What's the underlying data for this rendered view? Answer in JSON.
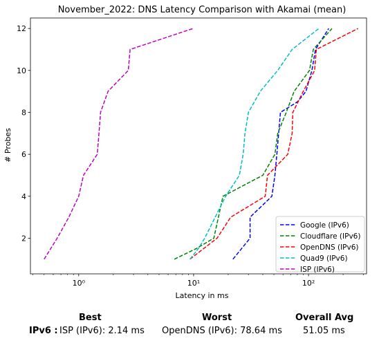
{
  "chart_data": {
    "type": "line",
    "title": "November_2022: DNS Latency Comparison with Akamai (mean)",
    "xlabel": "Latency in ms",
    "ylabel": "# Probes",
    "xscale": "log",
    "xlim": [
      0.38,
      320
    ],
    "ylim": [
      0.3,
      12.5
    ],
    "xticks": [
      {
        "value": 1,
        "label": "10⁰"
      },
      {
        "value": 10,
        "label": "10¹"
      },
      {
        "value": 100,
        "label": "10²"
      }
    ],
    "yticks": [
      2,
      4,
      6,
      8,
      10,
      12
    ],
    "grid": false,
    "legend_position": "lower-right",
    "line_style": "dashed",
    "series": [
      {
        "name": "Google (IPv6)",
        "color": "#0000ff",
        "points": [
          [
            22,
            1
          ],
          [
            31,
            2
          ],
          [
            31,
            2.5
          ],
          [
            31,
            3
          ],
          [
            48,
            4
          ],
          [
            51,
            5
          ],
          [
            53,
            6
          ],
          [
            55,
            7
          ],
          [
            57,
            8
          ],
          [
            80,
            8.5
          ],
          [
            95,
            9
          ],
          [
            107,
            10
          ],
          [
            115,
            11
          ],
          [
            150,
            12
          ]
        ]
      },
      {
        "name": "Cloudflare (IPv6)",
        "color": "#008000",
        "points": [
          [
            6.8,
            1
          ],
          [
            10.5,
            1.5
          ],
          [
            15,
            2
          ],
          [
            18,
            4
          ],
          [
            40,
            5
          ],
          [
            51,
            6
          ],
          [
            54,
            7
          ],
          [
            64,
            8
          ],
          [
            75,
            9
          ],
          [
            102,
            10
          ],
          [
            110,
            11
          ],
          [
            160,
            12
          ]
        ]
      },
      {
        "name": "OpenDNS (IPv6)",
        "color": "#ff0000",
        "points": [
          [
            9.3,
            1
          ],
          [
            16,
            2
          ],
          [
            21,
            3
          ],
          [
            42,
            4
          ],
          [
            44,
            5
          ],
          [
            66,
            6
          ],
          [
            72,
            7
          ],
          [
            73,
            8
          ],
          [
            90,
            9
          ],
          [
            113,
            10
          ],
          [
            117,
            11
          ],
          [
            270,
            12
          ]
        ]
      },
      {
        "name": "Quad9 (IPv6)",
        "color": "#00bfbf",
        "points": [
          [
            9.3,
            1
          ],
          [
            11,
            1.5
          ],
          [
            12.5,
            2
          ],
          [
            19,
            4
          ],
          [
            25,
            5
          ],
          [
            27,
            6
          ],
          [
            28,
            7
          ],
          [
            30,
            8
          ],
          [
            38,
            9
          ],
          [
            54,
            10
          ],
          [
            72,
            11
          ],
          [
            123,
            12
          ]
        ]
      },
      {
        "name": "ISP (IPv6)",
        "color": "#bf00bf",
        "points": [
          [
            0.5,
            1
          ],
          [
            0.65,
            2
          ],
          [
            0.82,
            3
          ],
          [
            1,
            4
          ],
          [
            1.1,
            5
          ],
          [
            1.45,
            6
          ],
          [
            1.5,
            7
          ],
          [
            1.55,
            8
          ],
          [
            1.8,
            9
          ],
          [
            2.7,
            10
          ],
          [
            2.8,
            11
          ],
          [
            9.9,
            12
          ]
        ]
      }
    ]
  },
  "summary": {
    "best_header": "Best",
    "worst_header": "Worst",
    "avg_header": "Overall Avg",
    "row_label": "IPv6 :",
    "best_value": "ISP (IPv6): 2.14 ms",
    "worst_value": "OpenDNS (IPv6): 78.64 ms",
    "avg_value": "51.05 ms"
  }
}
